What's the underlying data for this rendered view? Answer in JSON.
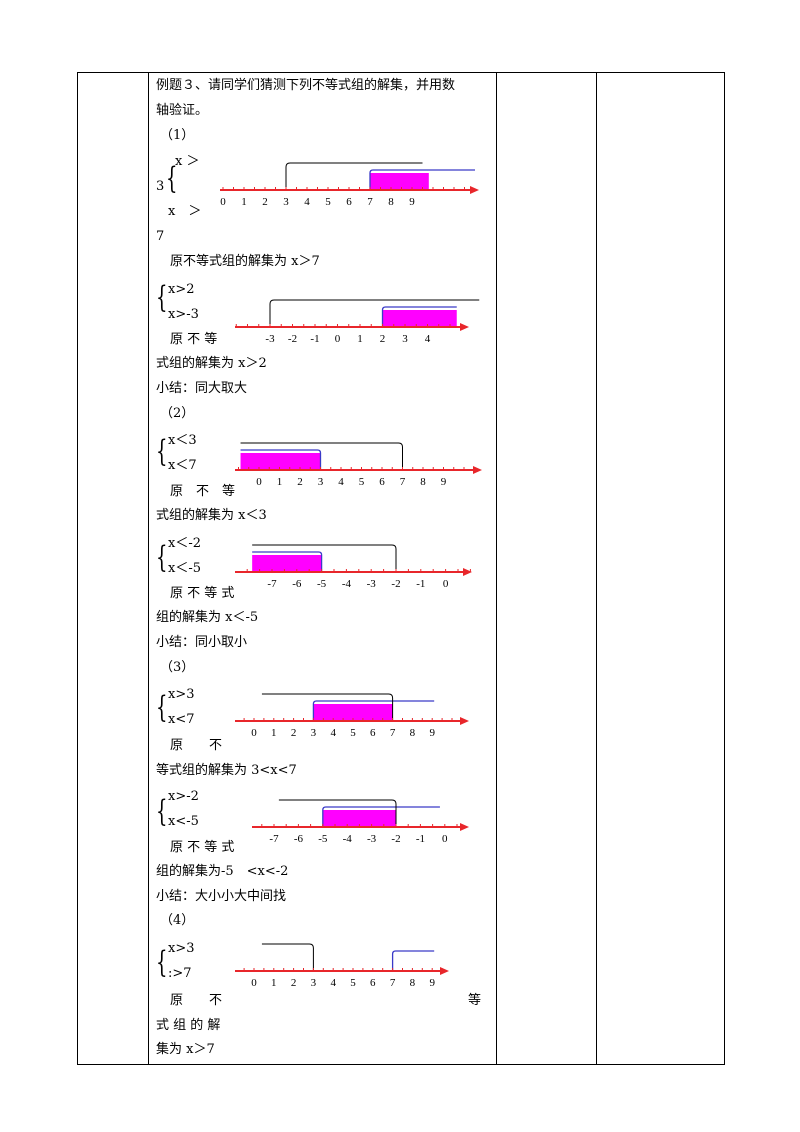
{
  "intro": {
    "line1": "例题３、请同学们猜测下列不等式组的解集，并用数",
    "line2": "轴验证。"
  },
  "parts": [
    {
      "label": "（1）",
      "examples": [
        {
          "ineq1": "x ＞",
          "prefix": "3",
          "ineq2": "x　＞",
          "suffix": "7",
          "answer_lines": [
            "原不等式组的解集为 x＞7"
          ],
          "ticks": [
            "0",
            "1",
            "2",
            "3",
            "4",
            "5",
            "6",
            "7",
            "8",
            "9"
          ]
        },
        {
          "ineq1": "x>2",
          "ineq2": "x>-3",
          "answer_lines": [
            "原 不 等",
            "式组的解集为 x＞2"
          ],
          "ticks": [
            "-3",
            "-2",
            "-1",
            "0",
            "1",
            "2",
            "3",
            "4"
          ]
        }
      ],
      "summary": "小结：同大取大"
    },
    {
      "label": "（2）",
      "examples": [
        {
          "ineq1": "x＜3",
          "ineq2": "x＜7",
          "answer_lines": [
            "原　不　等",
            "式组的解集为 x＜3"
          ],
          "ticks": [
            "0",
            "1",
            "2",
            "3",
            "4",
            "5",
            "6",
            "7",
            "8",
            "9"
          ]
        },
        {
          "ineq1": "x＜-2",
          "ineq2": "x＜-5",
          "answer_lines": [
            "原 不 等 式",
            "组的解集为 x＜-5"
          ],
          "ticks": [
            "-7",
            "-6",
            "-5",
            "-4",
            "-3",
            "-2",
            "-1",
            "0"
          ]
        }
      ],
      "summary": "小结：同小取小"
    },
    {
      "label": "（3）",
      "examples": [
        {
          "ineq1": "x>3",
          "ineq2": "x<7",
          "answer_lines": [
            "原　　不",
            "等式组的解集为 3<x<7"
          ],
          "ticks": [
            "0",
            "1",
            "2",
            "3",
            "4",
            "5",
            "6",
            "7",
            "8",
            "9"
          ]
        },
        {
          "ineq1": "x>-2",
          "ineq2": "x<-5",
          "answer_lines": [
            "原 不 等 式",
            "组的解集为-5　<x<-2"
          ],
          "ticks": [
            "-7",
            "-6",
            "-5",
            "-4",
            "-3",
            "-2",
            "-1",
            "0"
          ]
        }
      ],
      "summary": "小结：大小小大中间找"
    },
    {
      "label": "（4）",
      "examples": [
        {
          "ineq1": "x>3",
          "ineq2": ":>7",
          "answer_lines": [
            "原　　不",
            "等",
            "式 组 的 解",
            "集为 x＞7"
          ],
          "ticks": [
            "0",
            "1",
            "2",
            "3",
            "4",
            "5",
            "6",
            "7",
            "8",
            "9"
          ]
        }
      ]
    }
  ],
  "colors": {
    "axis": "#e8262b",
    "solution_fill": "#ff00ff",
    "primary_bracket": "#000000",
    "secondary_bracket": "#3a3ac8"
  }
}
